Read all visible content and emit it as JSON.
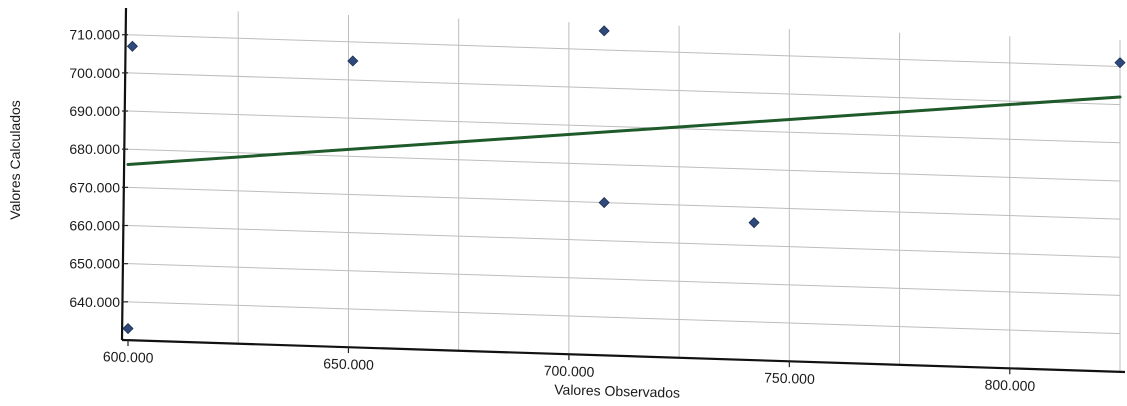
{
  "chart_data": {
    "type": "scatter",
    "title": "",
    "xlabel": "Valores Observados",
    "ylabel": "Valores Calculados",
    "xlim": [
      600000,
      825000
    ],
    "ylim": [
      630000,
      717000
    ],
    "x_ticks": [
      600000,
      650000,
      700000,
      750000,
      800000
    ],
    "x_tick_labels": [
      "600.000",
      "650.000",
      "700.000",
      "750.000",
      "800.000"
    ],
    "y_ticks": [
      640000,
      650000,
      660000,
      670000,
      680000,
      690000,
      700000,
      710000
    ],
    "y_tick_labels": [
      "640.000",
      "650.000",
      "660.000",
      "670.000",
      "680.000",
      "690.000",
      "700.000",
      "710.000"
    ],
    "grid": true,
    "points": [
      {
        "x": 601000,
        "y": 707000
      },
      {
        "x": 651000,
        "y": 705000
      },
      {
        "x": 708000,
        "y": 715000
      },
      {
        "x": 708000,
        "y": 670000
      },
      {
        "x": 742000,
        "y": 666000
      },
      {
        "x": 825000,
        "y": 711000
      },
      {
        "x": 600000,
        "y": 633000
      }
    ],
    "trendline": {
      "x": [
        600000,
        825000
      ],
      "y": [
        676000,
        702000
      ]
    },
    "colors": {
      "points": "#2f4a7a",
      "trendline": "#1f5a2a",
      "grid": "#bdbdbd",
      "axis": "#111111"
    }
  }
}
